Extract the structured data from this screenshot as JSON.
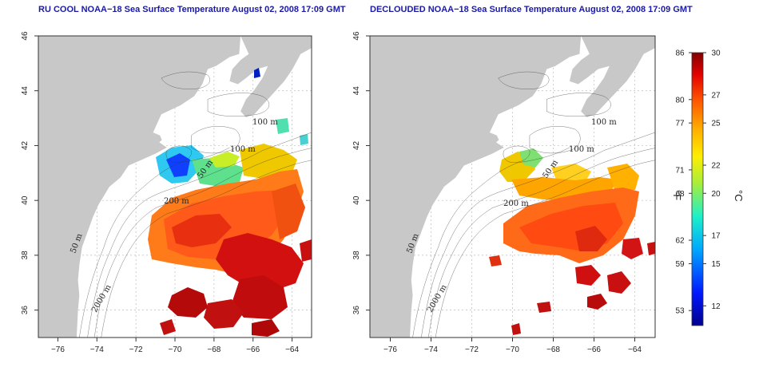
{
  "titles": {
    "left": "RU COOL NOAA−18 Sea Surface Temperature August 02, 2008 17:09 GMT",
    "right": "DECLOUDED NOAA−18 Sea Surface Temperature August 02, 2008 17:09 GMT"
  },
  "axes": {
    "x_ticks": [
      -76,
      -74,
      -72,
      -70,
      -68,
      -66,
      -64
    ],
    "y_ticks": [
      36,
      38,
      40,
      42,
      44,
      46
    ],
    "x_labels": [
      "−76",
      "−74",
      "−72",
      "−70",
      "−68",
      "−66",
      "−64"
    ],
    "y_labels": [
      "36",
      "38",
      "40",
      "42",
      "44",
      "46"
    ],
    "xlim": [
      -77,
      -63
    ],
    "ylim": [
      35,
      46
    ]
  },
  "contour_labels": [
    "100 m",
    "100 m",
    "50 m",
    "200 m",
    "50 m",
    "2000 m"
  ],
  "colorbar": {
    "fahrenheit_ticks": [
      "86",
      "80",
      "77",
      "71",
      "68",
      "62",
      "59",
      "53"
    ],
    "celsius_ticks": [
      "30",
      "27",
      "25",
      "22",
      "20",
      "17",
      "15",
      "12"
    ],
    "unit_f": "°F",
    "unit_c": "°C",
    "range_c": [
      10.6,
      30
    ]
  },
  "colors": {
    "land": "#c8c8c8",
    "ocean": "#ffffff",
    "title": "#1a1aa6",
    "grid": "#bbbbbb"
  }
}
